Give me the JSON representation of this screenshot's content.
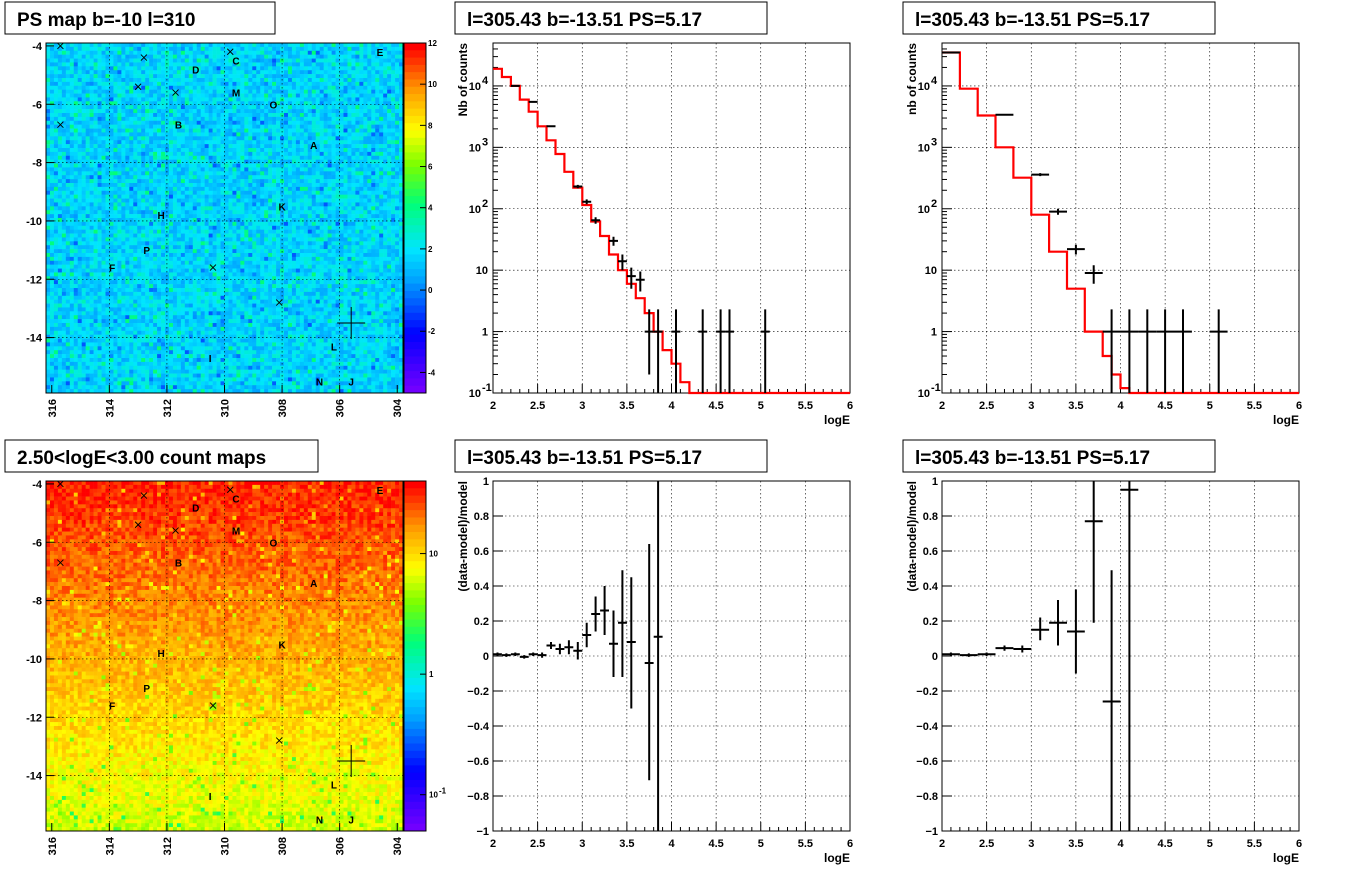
{
  "chart_data": [
    {
      "id": "ps-map",
      "type": "heatmap",
      "title": "PS map b=-10 l=310",
      "x_ticks": [
        "316",
        "314",
        "312",
        "310",
        "308",
        "306",
        "304"
      ],
      "y_ticks": [
        "-4",
        "-6",
        "-8",
        "-10",
        "-12",
        "-14"
      ],
      "xlim": [
        316.2,
        303.8
      ],
      "ylim": [
        -15.9,
        -3.9
      ],
      "colorbar": {
        "min": -5,
        "max": 12,
        "ticks": [
          "12",
          "10",
          "8",
          "6",
          "4",
          "2",
          "0",
          "-2",
          "-4"
        ],
        "tick_values": [
          12,
          10,
          8,
          6,
          4,
          2,
          0,
          -2,
          -4
        ],
        "scale": "linear"
      },
      "value_range": [
        -0.5,
        3
      ],
      "sources": [
        {
          "name": "A",
          "l": 306.9,
          "b": -7.4
        },
        {
          "name": "B",
          "l": 311.6,
          "b": -6.7
        },
        {
          "name": "C",
          "l": 309.6,
          "b": -4.5
        },
        {
          "name": "D",
          "l": 311.0,
          "b": -4.8
        },
        {
          "name": "E",
          "l": 304.6,
          "b": -4.2
        },
        {
          "name": "F",
          "l": 313.9,
          "b": -11.6
        },
        {
          "name": "H",
          "l": 312.2,
          "b": -9.8
        },
        {
          "name": "I",
          "l": 310.5,
          "b": -14.7
        },
        {
          "name": "J",
          "l": 305.6,
          "b": -15.5
        },
        {
          "name": "K",
          "l": 308.0,
          "b": -9.5
        },
        {
          "name": "L",
          "l": 306.2,
          "b": -14.3
        },
        {
          "name": "M",
          "l": 309.6,
          "b": -5.6
        },
        {
          "name": "N",
          "l": 306.7,
          "b": -15.5
        },
        {
          "name": "O",
          "l": 308.3,
          "b": -6.0
        },
        {
          "name": "P",
          "l": 312.7,
          "b": -11.0
        }
      ],
      "crosses": [
        [
          315.7,
          -4.0
        ],
        [
          312.8,
          -4.4
        ],
        [
          313.0,
          -5.4
        ],
        [
          311.7,
          -5.6
        ],
        [
          315.7,
          -6.7
        ],
        [
          309.8,
          -4.2
        ],
        [
          310.4,
          -11.6
        ],
        [
          308.1,
          -12.8
        ]
      ],
      "marker_circle": {
        "l": 308.3,
        "b": -6.0
      },
      "big_cross": {
        "l": 305.6,
        "b": -13.5
      }
    },
    {
      "id": "count-map",
      "type": "heatmap",
      "title": "2.50<logE<3.00 count maps",
      "x_ticks": [
        "316",
        "314",
        "312",
        "310",
        "308",
        "306",
        "304"
      ],
      "y_ticks": [
        "-4",
        "-6",
        "-8",
        "-10",
        "-12",
        "-14"
      ],
      "xlim": [
        316.2,
        303.8
      ],
      "ylim": [
        -15.9,
        -3.9
      ],
      "colorbar": {
        "min": 0.05,
        "max": 40,
        "ticks": [
          "10",
          "1",
          "10",
          "-1"
        ],
        "tick_values": [
          10,
          1,
          0.1
        ],
        "scale": "log"
      },
      "value_range": [
        2,
        30
      ]
    },
    {
      "id": "spec-1",
      "type": "line",
      "title": "l=305.43 b=-13.51 PS=5.17",
      "xlabel": "logE",
      "ylabel": "Nb of counts",
      "xlim": [
        2,
        6
      ],
      "ylim": [
        0.1,
        50000
      ],
      "yscale": "log",
      "x_ticks": [
        "2",
        "2.5",
        "3",
        "3.5",
        "4",
        "4.5",
        "5",
        "5.5",
        "6"
      ],
      "y_ticks": [
        {
          "v": 0.1,
          "t": "10",
          "e": "-1"
        },
        {
          "v": 1,
          "t": "1",
          "e": ""
        },
        {
          "v": 10,
          "t": "10",
          "e": ""
        },
        {
          "v": 100,
          "t": "10",
          "e": "2"
        },
        {
          "v": 1000,
          "t": "10",
          "e": "3"
        },
        {
          "v": 10000,
          "t": "10",
          "e": "4"
        }
      ],
      "model": {
        "name": "model",
        "color": "#ff0000",
        "bin_edges": [
          2.0,
          2.1,
          2.2,
          2.3,
          2.4,
          2.5,
          2.6,
          2.7,
          2.8,
          2.9,
          3.0,
          3.1,
          3.2,
          3.3,
          3.4,
          3.5,
          3.6,
          3.7,
          3.8,
          3.9,
          4.0,
          4.1,
          4.2,
          6.0
        ],
        "values": [
          19000,
          14000,
          10000,
          6000,
          3800,
          2200,
          1300,
          780,
          400,
          220,
          115,
          62,
          36,
          18,
          10,
          6,
          3.5,
          2,
          1,
          0.5,
          0.3,
          0.15,
          0.1
        ]
      },
      "data": {
        "name": "data",
        "color": "#000000",
        "points": [
          {
            "x": 2.25,
            "y": 10000,
            "xe": 0.05,
            "lo": 9800,
            "hi": 10200
          },
          {
            "x": 2.45,
            "y": 5500,
            "xe": 0.05,
            "lo": 5400,
            "hi": 5600
          },
          {
            "x": 2.65,
            "y": 2200,
            "xe": 0.05,
            "lo": 2150,
            "hi": 2250
          },
          {
            "x": 2.95,
            "y": 230,
            "xe": 0.05,
            "lo": 215,
            "hi": 245
          },
          {
            "x": 3.05,
            "y": 130,
            "xe": 0.05,
            "lo": 118,
            "hi": 142
          },
          {
            "x": 3.15,
            "y": 65,
            "xe": 0.05,
            "lo": 57,
            "hi": 73
          },
          {
            "x": 3.35,
            "y": 30,
            "xe": 0.05,
            "lo": 25,
            "hi": 35
          },
          {
            "x": 3.45,
            "y": 14,
            "xe": 0.05,
            "lo": 10,
            "hi": 18
          },
          {
            "x": 3.55,
            "y": 8,
            "xe": 0.05,
            "lo": 5,
            "hi": 11
          },
          {
            "x": 3.65,
            "y": 7,
            "xe": 0.05,
            "lo": 4.5,
            "hi": 9.5
          },
          {
            "x": 3.75,
            "y": 1,
            "xe": 0.05,
            "lo": 0.2,
            "hi": 2.3
          },
          {
            "x": 3.85,
            "y": 1,
            "xe": 0.05,
            "lo": 0.1,
            "hi": 2.3
          },
          {
            "x": 4.05,
            "y": 1,
            "xe": 0.05,
            "lo": 0.1,
            "hi": 2.3
          },
          {
            "x": 4.35,
            "y": 1,
            "xe": 0.05,
            "lo": 0.1,
            "hi": 2.3
          },
          {
            "x": 4.55,
            "y": 1,
            "xe": 0.05,
            "lo": 0.1,
            "hi": 2.3
          },
          {
            "x": 4.65,
            "y": 1,
            "xe": 0.05,
            "lo": 0.1,
            "hi": 2.3
          },
          {
            "x": 5.05,
            "y": 1,
            "xe": 0.05,
            "lo": 0.1,
            "hi": 2.3
          }
        ]
      }
    },
    {
      "id": "spec-2",
      "type": "line",
      "title": "l=305.43 b=-13.51 PS=5.17",
      "xlabel": "logE",
      "ylabel": "nb of counts",
      "xlim": [
        2,
        6
      ],
      "ylim": [
        0.1,
        50000
      ],
      "yscale": "log",
      "x_ticks": [
        "2",
        "2.5",
        "3",
        "3.5",
        "4",
        "4.5",
        "5",
        "5.5",
        "6"
      ],
      "y_ticks": [
        {
          "v": 0.1,
          "t": "10",
          "e": "-1"
        },
        {
          "v": 1,
          "t": "1",
          "e": ""
        },
        {
          "v": 10,
          "t": "10",
          "e": ""
        },
        {
          "v": 100,
          "t": "10",
          "e": "2"
        },
        {
          "v": 1000,
          "t": "10",
          "e": "3"
        },
        {
          "v": 10000,
          "t": "10",
          "e": "4"
        }
      ],
      "model": {
        "name": "model",
        "color": "#ff0000",
        "bin_edges": [
          2.0,
          2.2,
          2.4,
          2.6,
          2.8,
          3.0,
          3.2,
          3.4,
          3.6,
          3.8,
          3.9,
          4.0,
          4.1,
          4.2,
          6.0
        ],
        "values": [
          35000,
          9000,
          3300,
          1000,
          320,
          80,
          20,
          5,
          1,
          0.4,
          0.2,
          0.12,
          0.1,
          0.1
        ]
      },
      "data": {
        "name": "data",
        "color": "#000000",
        "points": [
          {
            "x": 2.1,
            "y": 35000,
            "xe": 0.1,
            "lo": 34000,
            "hi": 36000
          },
          {
            "x": 2.7,
            "y": 3400,
            "xe": 0.1,
            "lo": 3300,
            "hi": 3500
          },
          {
            "x": 3.1,
            "y": 360,
            "xe": 0.1,
            "lo": 340,
            "hi": 380
          },
          {
            "x": 3.3,
            "y": 90,
            "xe": 0.1,
            "lo": 80,
            "hi": 100
          },
          {
            "x": 3.5,
            "y": 22,
            "xe": 0.1,
            "lo": 18,
            "hi": 26
          },
          {
            "x": 3.7,
            "y": 9,
            "xe": 0.1,
            "lo": 6,
            "hi": 12
          },
          {
            "x": 3.9,
            "y": 1,
            "xe": 0.1,
            "lo": 0.1,
            "hi": 2.3
          },
          {
            "x": 4.1,
            "y": 1,
            "xe": 0.1,
            "lo": 0.1,
            "hi": 2.3
          },
          {
            "x": 4.3,
            "y": 1,
            "xe": 0.1,
            "lo": 0.1,
            "hi": 2.3
          },
          {
            "x": 4.5,
            "y": 1,
            "xe": 0.1,
            "lo": 0.1,
            "hi": 2.3
          },
          {
            "x": 4.7,
            "y": 1,
            "xe": 0.1,
            "lo": 0.1,
            "hi": 2.3
          },
          {
            "x": 5.1,
            "y": 1,
            "xe": 0.1,
            "lo": 0.1,
            "hi": 2.3
          }
        ]
      }
    },
    {
      "id": "resid-1",
      "type": "scatter",
      "title": "l=305.43 b=-13.51 PS=5.17",
      "xlabel": "logE",
      "ylabel": "(data-model)/model",
      "xlim": [
        2,
        6
      ],
      "ylim": [
        -1,
        1
      ],
      "yscale": "linear",
      "x_ticks": [
        "2",
        "2.5",
        "3",
        "3.5",
        "4",
        "4.5",
        "5",
        "5.5",
        "6"
      ],
      "y_ticks": [
        "1",
        "0.8",
        "0.6",
        "0.4",
        "0.2",
        "0",
        "−0.2",
        "−0.4",
        "−0.6",
        "−0.8",
        "−1"
      ],
      "y_tick_values": [
        1,
        0.8,
        0.6,
        0.4,
        0.2,
        0,
        -0.2,
        -0.4,
        -0.6,
        -0.8,
        -1
      ],
      "points": [
        {
          "x": 2.05,
          "y": 0.01,
          "xe": 0.05,
          "lo": 0.0,
          "hi": 0.02
        },
        {
          "x": 2.15,
          "y": 0.005,
          "xe": 0.05,
          "lo": -0.005,
          "hi": 0.015
        },
        {
          "x": 2.25,
          "y": 0.01,
          "xe": 0.05,
          "lo": 0.0,
          "hi": 0.02
        },
        {
          "x": 2.35,
          "y": -0.005,
          "xe": 0.05,
          "lo": -0.015,
          "hi": 0.005
        },
        {
          "x": 2.45,
          "y": 0.01,
          "xe": 0.05,
          "lo": 0.0,
          "hi": 0.02
        },
        {
          "x": 2.55,
          "y": 0.005,
          "xe": 0.05,
          "lo": -0.01,
          "hi": 0.02
        },
        {
          "x": 2.65,
          "y": 0.06,
          "xe": 0.05,
          "lo": 0.04,
          "hi": 0.08
        },
        {
          "x": 2.75,
          "y": 0.04,
          "xe": 0.05,
          "lo": 0.01,
          "hi": 0.07
        },
        {
          "x": 2.85,
          "y": 0.05,
          "xe": 0.05,
          "lo": 0.01,
          "hi": 0.09
        },
        {
          "x": 2.95,
          "y": 0.03,
          "xe": 0.05,
          "lo": -0.02,
          "hi": 0.08
        },
        {
          "x": 3.05,
          "y": 0.12,
          "xe": 0.05,
          "lo": 0.05,
          "hi": 0.19
        },
        {
          "x": 3.15,
          "y": 0.24,
          "xe": 0.05,
          "lo": 0.14,
          "hi": 0.34
        },
        {
          "x": 3.25,
          "y": 0.26,
          "xe": 0.05,
          "lo": 0.12,
          "hi": 0.4
        },
        {
          "x": 3.35,
          "y": 0.07,
          "xe": 0.05,
          "lo": -0.12,
          "hi": 0.26
        },
        {
          "x": 3.45,
          "y": 0.19,
          "xe": 0.05,
          "lo": -0.12,
          "hi": 0.49
        },
        {
          "x": 3.55,
          "y": 0.08,
          "xe": 0.05,
          "lo": -0.3,
          "hi": 0.45
        },
        {
          "x": 3.75,
          "y": -0.04,
          "xe": 0.05,
          "lo": -0.71,
          "hi": 0.64
        },
        {
          "x": 3.85,
          "y": 0.11,
          "xe": 0.05,
          "lo": -1.0,
          "hi": 1.0
        }
      ]
    },
    {
      "id": "resid-2",
      "type": "scatter",
      "title": "l=305.43 b=-13.51 PS=5.17",
      "xlabel": "logE",
      "ylabel": "(data-model)/model",
      "xlim": [
        2,
        6
      ],
      "ylim": [
        -1,
        1
      ],
      "yscale": "linear",
      "x_ticks": [
        "2",
        "2.5",
        "3",
        "3.5",
        "4",
        "4.5",
        "5",
        "5.5",
        "6"
      ],
      "y_ticks": [
        "1",
        "0.8",
        "0.6",
        "0.4",
        "0.2",
        "0",
        "−0.2",
        "−0.4",
        "−0.6",
        "−0.8",
        "−1"
      ],
      "y_tick_values": [
        1,
        0.8,
        0.6,
        0.4,
        0.2,
        0,
        -0.2,
        -0.4,
        -0.6,
        -0.8,
        -1
      ],
      "points": [
        {
          "x": 2.1,
          "y": 0.01,
          "xe": 0.1,
          "lo": 0.0,
          "hi": 0.02
        },
        {
          "x": 2.3,
          "y": 0.005,
          "xe": 0.1,
          "lo": -0.005,
          "hi": 0.015
        },
        {
          "x": 2.5,
          "y": 0.01,
          "xe": 0.1,
          "lo": 0.0,
          "hi": 0.02
        },
        {
          "x": 2.7,
          "y": 0.045,
          "xe": 0.1,
          "lo": 0.03,
          "hi": 0.06
        },
        {
          "x": 2.9,
          "y": 0.04,
          "xe": 0.1,
          "lo": 0.02,
          "hi": 0.06
        },
        {
          "x": 3.1,
          "y": 0.15,
          "xe": 0.1,
          "lo": 0.09,
          "hi": 0.22
        },
        {
          "x": 3.3,
          "y": 0.19,
          "xe": 0.1,
          "lo": 0.06,
          "hi": 0.32
        },
        {
          "x": 3.5,
          "y": 0.14,
          "xe": 0.1,
          "lo": -0.1,
          "hi": 0.38
        },
        {
          "x": 3.7,
          "y": 0.77,
          "xe": 0.1,
          "lo": 0.19,
          "hi": 1.0
        },
        {
          "x": 3.9,
          "y": -0.26,
          "xe": 0.1,
          "lo": -1.0,
          "hi": 0.49
        },
        {
          "x": 4.1,
          "y": 0.95,
          "xe": 0.1,
          "lo": -1.0,
          "hi": 1.0
        }
      ]
    }
  ]
}
